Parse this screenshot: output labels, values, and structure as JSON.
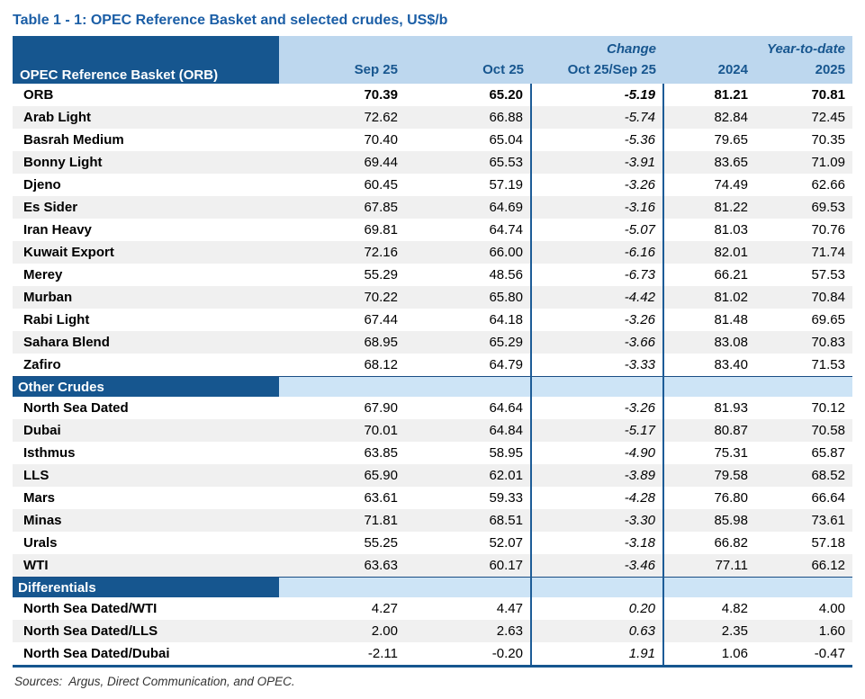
{
  "title": "Table 1 - 1: OPEC Reference Basket and selected crudes, US$/b",
  "table": {
    "corner_header": "OPEC Reference Basket (ORB)",
    "group_headers": {
      "change": "Change",
      "ytd": "Year-to-date"
    },
    "column_headers": [
      "Sep 25",
      "Oct 25",
      "Oct 25/Sep 25",
      "2024",
      "2025"
    ],
    "sections": [
      {
        "label": null,
        "rows": [
          {
            "name": "ORB",
            "bold": true,
            "values": [
              "70.39",
              "65.20",
              "-5.19",
              "81.21",
              "70.81"
            ]
          },
          {
            "name": "Arab Light",
            "bold": false,
            "values": [
              "72.62",
              "66.88",
              "-5.74",
              "82.84",
              "72.45"
            ]
          },
          {
            "name": "Basrah Medium",
            "bold": false,
            "values": [
              "70.40",
              "65.04",
              "-5.36",
              "79.65",
              "70.35"
            ]
          },
          {
            "name": "Bonny Light",
            "bold": false,
            "values": [
              "69.44",
              "65.53",
              "-3.91",
              "83.65",
              "71.09"
            ]
          },
          {
            "name": "Djeno",
            "bold": false,
            "values": [
              "60.45",
              "57.19",
              "-3.26",
              "74.49",
              "62.66"
            ]
          },
          {
            "name": "Es Sider",
            "bold": false,
            "values": [
              "67.85",
              "64.69",
              "-3.16",
              "81.22",
              "69.53"
            ]
          },
          {
            "name": "Iran Heavy",
            "bold": false,
            "values": [
              "69.81",
              "64.74",
              "-5.07",
              "81.03",
              "70.76"
            ]
          },
          {
            "name": "Kuwait Export",
            "bold": false,
            "values": [
              "72.16",
              "66.00",
              "-6.16",
              "82.01",
              "71.74"
            ]
          },
          {
            "name": "Merey",
            "bold": false,
            "values": [
              "55.29",
              "48.56",
              "-6.73",
              "66.21",
              "57.53"
            ]
          },
          {
            "name": "Murban",
            "bold": false,
            "values": [
              "70.22",
              "65.80",
              "-4.42",
              "81.02",
              "70.84"
            ]
          },
          {
            "name": "Rabi Light",
            "bold": false,
            "values": [
              "67.44",
              "64.18",
              "-3.26",
              "81.48",
              "69.65"
            ]
          },
          {
            "name": "Sahara Blend",
            "bold": false,
            "values": [
              "68.95",
              "65.29",
              "-3.66",
              "83.08",
              "70.83"
            ]
          },
          {
            "name": "Zafiro",
            "bold": false,
            "values": [
              "68.12",
              "64.79",
              "-3.33",
              "83.40",
              "71.53"
            ]
          }
        ]
      },
      {
        "label": "Other Crudes",
        "rows": [
          {
            "name": "North Sea Dated",
            "bold": false,
            "values": [
              "67.90",
              "64.64",
              "-3.26",
              "81.93",
              "70.12"
            ]
          },
          {
            "name": "Dubai",
            "bold": false,
            "values": [
              "70.01",
              "64.84",
              "-5.17",
              "80.87",
              "70.58"
            ]
          },
          {
            "name": "Isthmus",
            "bold": false,
            "values": [
              "63.85",
              "58.95",
              "-4.90",
              "75.31",
              "65.87"
            ]
          },
          {
            "name": "LLS",
            "bold": false,
            "values": [
              "65.90",
              "62.01",
              "-3.89",
              "79.58",
              "68.52"
            ]
          },
          {
            "name": "Mars",
            "bold": false,
            "values": [
              "63.61",
              "59.33",
              "-4.28",
              "76.80",
              "66.64"
            ]
          },
          {
            "name": "Minas",
            "bold": false,
            "values": [
              "71.81",
              "68.51",
              "-3.30",
              "85.98",
              "73.61"
            ]
          },
          {
            "name": "Urals",
            "bold": false,
            "values": [
              "55.25",
              "52.07",
              "-3.18",
              "66.82",
              "57.18"
            ]
          },
          {
            "name": "WTI",
            "bold": false,
            "values": [
              "63.63",
              "60.17",
              "-3.46",
              "77.11",
              "66.12"
            ]
          }
        ]
      },
      {
        "label": "Differentials",
        "rows": [
          {
            "name": "North Sea Dated/WTI",
            "bold": false,
            "values": [
              "4.27",
              "4.47",
              "0.20",
              "4.82",
              "4.00"
            ]
          },
          {
            "name": "North Sea Dated/LLS",
            "bold": false,
            "values": [
              "2.00",
              "2.63",
              "0.63",
              "2.35",
              "1.60"
            ]
          },
          {
            "name": "North Sea Dated/Dubai",
            "bold": false,
            "values": [
              "-2.11",
              "-0.20",
              "1.91",
              "1.06",
              "-0.47"
            ]
          }
        ]
      }
    ]
  },
  "footer": {
    "sources": "Sources:  Argus, Direct Communication, and OPEC."
  },
  "colors": {
    "dark_blue": "#16568F",
    "header_light_blue": "#BDD7EE",
    "section_band_blue": "#CDE4F6",
    "row_stripe_gray": "#F0F0F0",
    "rule_blue": "#1D5C97",
    "title_blue": "#1B5EA6"
  }
}
